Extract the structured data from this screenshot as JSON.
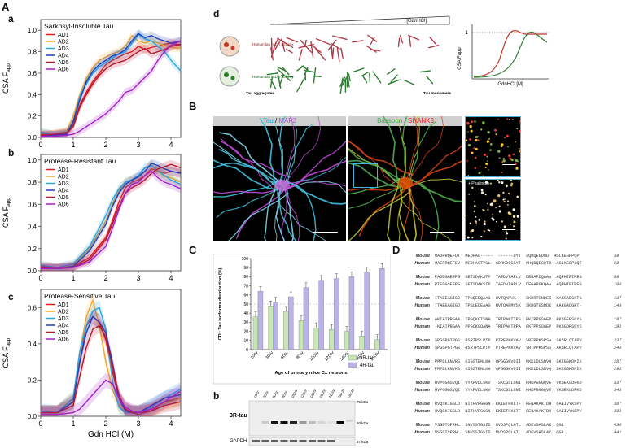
{
  "figure": {
    "panel_A": "A",
    "panel_B": "B",
    "panel_C": "C",
    "panel_D": "D",
    "sub_a": "a",
    "sub_b": "b",
    "sub_c": "c",
    "sub_d": "d",
    "sub_Ca": "a",
    "sub_Cb": "b"
  },
  "chart_data": [
    {
      "type": "line",
      "title": "Sarkosyl-Insoluble Tau",
      "xlabel": "",
      "ylabel": "CSA F_app",
      "xlim": [
        0,
        4.3
      ],
      "ylim": [
        0,
        1.1
      ],
      "xticks": [
        "0",
        "1",
        "2",
        "3",
        "4"
      ],
      "yticks": [
        "0.0",
        "0.2",
        "0.4",
        "0.6",
        "0.8",
        "1.0"
      ],
      "series": [
        {
          "name": "AD1",
          "color": "#e41a1c",
          "x": [
            0,
            0.4,
            0.8,
            1.0,
            1.2,
            1.4,
            1.6,
            1.8,
            2.0,
            2.2,
            2.4,
            2.6,
            2.8,
            3.0,
            3.2,
            3.4,
            3.6,
            3.8,
            4.0,
            4.3
          ],
          "values": [
            0.03,
            0.02,
            0.05,
            0.12,
            0.3,
            0.42,
            0.52,
            0.6,
            0.68,
            0.72,
            0.75,
            0.78,
            0.8,
            0.85,
            0.82,
            0.84,
            0.85,
            0.87,
            0.88,
            0.86
          ]
        },
        {
          "name": "AD2",
          "color": "#f5a623",
          "x": [
            0,
            0.4,
            0.8,
            1.0,
            1.2,
            1.4,
            1.6,
            1.8,
            2.0,
            2.2,
            2.4,
            2.6,
            2.8,
            3.0,
            3.2,
            3.4,
            3.6,
            3.8,
            4.0,
            4.3
          ],
          "values": [
            0.04,
            0.03,
            0.06,
            0.2,
            0.4,
            0.55,
            0.65,
            0.72,
            0.75,
            0.78,
            0.8,
            0.85,
            0.95,
            0.9,
            0.88,
            0.9,
            0.88,
            0.86,
            0.84,
            0.83
          ]
        },
        {
          "name": "AD3",
          "color": "#29a8e0",
          "x": [
            0,
            0.4,
            0.8,
            1.0,
            1.2,
            1.4,
            1.6,
            1.8,
            2.0,
            2.2,
            2.4,
            2.6,
            2.8,
            3.0,
            3.2,
            3.4,
            3.6,
            3.8,
            4.0,
            4.3
          ],
          "values": [
            0.05,
            0.02,
            0.04,
            0.15,
            0.38,
            0.5,
            0.6,
            0.66,
            0.7,
            0.74,
            0.78,
            0.8,
            0.88,
            0.96,
            0.92,
            0.9,
            0.85,
            0.8,
            0.72,
            0.62
          ]
        },
        {
          "name": "AD4",
          "color": "#1f3fc4",
          "x": [
            0,
            0.4,
            0.8,
            1.0,
            1.2,
            1.4,
            1.6,
            1.8,
            2.0,
            2.2,
            2.4,
            2.6,
            2.8,
            3.0,
            3.2,
            3.4,
            3.6,
            3.8,
            4.0,
            4.3
          ],
          "values": [
            0.02,
            0.02,
            0.03,
            0.15,
            0.35,
            0.52,
            0.62,
            0.68,
            0.72,
            0.76,
            0.78,
            0.82,
            0.9,
            0.97,
            0.93,
            0.95,
            0.92,
            0.9,
            0.88,
            0.9
          ]
        },
        {
          "name": "AD5",
          "color": "#b2182b",
          "x": [
            0,
            0.4,
            0.8,
            1.0,
            1.2,
            1.4,
            1.6,
            1.8,
            2.0,
            2.2,
            2.4,
            2.6,
            2.8,
            3.0,
            3.2,
            3.4,
            3.6,
            3.8,
            4.0,
            4.3
          ],
          "values": [
            0.02,
            0.03,
            0.04,
            0.1,
            0.28,
            0.4,
            0.5,
            0.58,
            0.64,
            0.68,
            0.7,
            0.72,
            0.76,
            0.8,
            0.83,
            0.78,
            0.8,
            0.82,
            0.85,
            0.87
          ]
        },
        {
          "name": "AD6",
          "color": "#a020c8",
          "x": [
            0,
            0.4,
            0.8,
            1.0,
            1.2,
            1.4,
            1.6,
            1.8,
            2.0,
            2.2,
            2.4,
            2.6,
            2.8,
            3.0,
            3.2,
            3.4,
            3.6,
            3.8,
            4.0,
            4.3
          ],
          "values": [
            0.01,
            0.01,
            0.02,
            0.03,
            0.06,
            0.1,
            0.14,
            0.18,
            0.22,
            0.28,
            0.34,
            0.42,
            0.44,
            0.5,
            0.56,
            0.62,
            0.72,
            0.8,
            0.86,
            0.9
          ]
        }
      ]
    },
    {
      "type": "line",
      "title": "Protease-Resistant Tau",
      "xlabel": "",
      "ylabel": "CSA F_app",
      "xlim": [
        0,
        4.3
      ],
      "ylim": [
        0,
        1.05
      ],
      "xticks": [
        "0",
        "1",
        "2",
        "3",
        "4"
      ],
      "yticks": [
        "0.0",
        "0.2",
        "0.4",
        "0.6",
        "0.8",
        "1.0"
      ],
      "series": [
        {
          "name": "AD1",
          "color": "#e41a1c",
          "x": [
            0,
            0.5,
            1.0,
            1.5,
            2.0,
            2.2,
            2.4,
            2.6,
            2.8,
            3.0,
            3.2,
            3.4,
            3.6,
            3.8,
            4.0,
            4.3
          ],
          "values": [
            0.04,
            0.03,
            0.04,
            0.12,
            0.3,
            0.45,
            0.62,
            0.75,
            0.8,
            0.82,
            0.86,
            0.92,
            0.9,
            0.88,
            0.9,
            0.88
          ]
        },
        {
          "name": "AD2",
          "color": "#f5a623",
          "x": [
            0,
            0.5,
            1.0,
            1.5,
            2.0,
            2.2,
            2.4,
            2.6,
            2.8,
            3.0,
            3.2,
            3.4,
            3.6,
            3.8,
            4.0,
            4.3
          ],
          "values": [
            0.03,
            0.02,
            0.05,
            0.2,
            0.45,
            0.6,
            0.72,
            0.8,
            0.82,
            0.84,
            0.9,
            0.96,
            0.9,
            0.85,
            0.84,
            0.8
          ]
        },
        {
          "name": "AD3",
          "color": "#29a8e0",
          "x": [
            0,
            0.5,
            1.0,
            1.5,
            2.0,
            2.2,
            2.4,
            2.6,
            2.8,
            3.0,
            3.2,
            3.4,
            3.6,
            3.8,
            4.0,
            4.3
          ],
          "values": [
            0.05,
            0.03,
            0.06,
            0.22,
            0.5,
            0.64,
            0.74,
            0.8,
            0.82,
            0.86,
            0.93,
            0.95,
            0.9,
            0.86,
            0.82,
            0.78
          ]
        },
        {
          "name": "AD4",
          "color": "#1f3fc4",
          "x": [
            0,
            0.5,
            1.0,
            1.5,
            2.0,
            2.2,
            2.4,
            2.6,
            2.8,
            3.0,
            3.2,
            3.4,
            3.6,
            3.8,
            4.0,
            4.3
          ],
          "values": [
            0.02,
            0.02,
            0.04,
            0.18,
            0.42,
            0.58,
            0.7,
            0.78,
            0.82,
            0.85,
            0.9,
            0.97,
            0.95,
            0.92,
            0.9,
            0.88
          ]
        },
        {
          "name": "AD5",
          "color": "#b2182b",
          "x": [
            0,
            0.5,
            1.0,
            1.5,
            2.0,
            2.2,
            2.4,
            2.6,
            2.8,
            3.0,
            3.2,
            3.4,
            3.6,
            3.8,
            4.0,
            4.3
          ],
          "values": [
            0.03,
            0.02,
            0.03,
            0.1,
            0.28,
            0.42,
            0.58,
            0.7,
            0.75,
            0.78,
            0.82,
            0.88,
            0.92,
            0.94,
            0.96,
            0.93
          ]
        },
        {
          "name": "AD6",
          "color": "#a020c8",
          "x": [
            0,
            0.5,
            1.0,
            1.5,
            2.0,
            2.2,
            2.4,
            2.6,
            2.8,
            3.0,
            3.2,
            3.4,
            3.6,
            3.8,
            4.0,
            4.3
          ],
          "values": [
            0.02,
            0.02,
            0.03,
            0.08,
            0.22,
            0.38,
            0.55,
            0.7,
            0.78,
            0.8,
            0.86,
            0.9,
            0.84,
            0.8,
            0.78,
            0.74
          ]
        }
      ]
    },
    {
      "type": "line",
      "title": "Protease-Sensitive Tau",
      "xlabel": "Gdn HCl (M)",
      "ylabel": "CSA F_app",
      "xlim": [
        0,
        4.3
      ],
      "ylim": [
        0,
        0.7
      ],
      "xticks": [
        "0",
        "1",
        "2",
        "3",
        "4"
      ],
      "yticks": [
        "0.0",
        "0.2",
        "0.4",
        "0.6"
      ],
      "series": [
        {
          "name": "AD1",
          "color": "#e41a1c",
          "x": [
            0,
            0.5,
            1.0,
            1.2,
            1.4,
            1.6,
            1.8,
            2.0,
            2.2,
            2.4,
            2.6,
            2.8,
            3.0,
            3.4,
            3.8,
            4.3
          ],
          "values": [
            0.02,
            0.02,
            0.08,
            0.3,
            0.5,
            0.55,
            0.52,
            0.42,
            0.25,
            0.1,
            0.04,
            0.02,
            0.01,
            0.03,
            0.08,
            0.1
          ]
        },
        {
          "name": "AD2",
          "color": "#f5a623",
          "x": [
            0,
            0.5,
            1.0,
            1.2,
            1.4,
            1.6,
            1.8,
            2.0,
            2.2,
            2.4,
            2.6,
            2.8,
            3.0,
            3.4,
            3.8,
            4.3
          ],
          "values": [
            0.02,
            0.02,
            0.1,
            0.35,
            0.55,
            0.64,
            0.5,
            0.3,
            0.15,
            0.06,
            0.02,
            0.02,
            0.02,
            0.04,
            0.07,
            0.1
          ]
        },
        {
          "name": "AD3",
          "color": "#29a8e0",
          "x": [
            0,
            0.5,
            1.0,
            1.2,
            1.4,
            1.6,
            1.8,
            2.0,
            2.2,
            2.4,
            2.6,
            2.8,
            3.0,
            3.4,
            3.8,
            4.3
          ],
          "values": [
            0.03,
            0.02,
            0.1,
            0.36,
            0.5,
            0.58,
            0.6,
            0.48,
            0.2,
            0.05,
            0.02,
            0.02,
            0.02,
            0.05,
            0.1,
            0.15
          ]
        },
        {
          "name": "AD4",
          "color": "#1f3fc4",
          "x": [
            0,
            0.5,
            1.0,
            1.2,
            1.4,
            1.6,
            1.8,
            2.0,
            2.2,
            2.4,
            2.6,
            2.8,
            3.0,
            3.4,
            3.8,
            4.3
          ],
          "values": [
            0.02,
            0.02,
            0.08,
            0.3,
            0.46,
            0.55,
            0.52,
            0.46,
            0.3,
            0.1,
            0.03,
            0.02,
            0.02,
            0.06,
            0.1,
            0.12
          ]
        },
        {
          "name": "AD5",
          "color": "#b2182b",
          "x": [
            0,
            0.5,
            1.0,
            1.2,
            1.4,
            1.6,
            1.8,
            2.0,
            2.2,
            2.4,
            2.6,
            2.8,
            3.0,
            3.4,
            3.8,
            4.3
          ],
          "values": [
            0.02,
            0.02,
            0.06,
            0.22,
            0.38,
            0.48,
            0.5,
            0.44,
            0.28,
            0.12,
            0.04,
            0.02,
            0.02,
            0.03,
            0.06,
            0.08
          ]
        },
        {
          "name": "AD6",
          "color": "#a020c8",
          "x": [
            0,
            0.5,
            1.0,
            1.2,
            1.4,
            1.6,
            1.8,
            2.0,
            2.2,
            2.4,
            2.6,
            2.8,
            3.0,
            3.4,
            3.8,
            4.3
          ],
          "values": [
            0.01,
            0.01,
            0.02,
            0.04,
            0.08,
            0.12,
            0.16,
            0.2,
            0.18,
            0.1,
            0.05,
            0.03,
            0.02,
            0.04,
            0.08,
            0.14
          ]
        }
      ]
    },
    {
      "type": "bar",
      "title": "",
      "xlabel": "Age of primary mice Cx neurons",
      "ylabel": "CDI: Tau isoforms distribution (%)",
      "ylim": [
        0,
        100
      ],
      "yticks": [
        "0",
        "10",
        "20",
        "30",
        "40",
        "50",
        "60",
        "70",
        "80",
        "90",
        "100"
      ],
      "categories": [
        "1DIV",
        "3DIV",
        "6DIV",
        "8DIV",
        "10DIV",
        "12DIV",
        "14DIV",
        "16DIV",
        "21DIV"
      ],
      "series": [
        {
          "name": "3R-tau",
          "color": "#c8e6b4",
          "values": [
            36,
            48,
            42,
            32,
            24,
            22,
            20,
            15,
            11
          ]
        },
        {
          "name": "4R-tau",
          "color": "#b9b3ea",
          "values": [
            64,
            52,
            58,
            68,
            76,
            78,
            80,
            85,
            89
          ]
        }
      ]
    }
  ],
  "panel_d": {
    "gradient_label": "[GdnHCl]",
    "strain_x": "Human tau (ADₓ)\nStrain x",
    "strain_y": "Human tau (ADᵧ)\nStrain y",
    "aggregates": "Tau aggregates",
    "monomers": "Tau monomers",
    "ylabel": "CSA Fapp",
    "xlabel": "GdnHCl [M]",
    "y_one": "1"
  },
  "panel_B": {
    "img1_label_a": "Tau",
    "img1_sep": " / ",
    "img1_label_b": "MAP2",
    "img2_label_a": "Bassoon",
    "img2_sep": " / ",
    "img2_label_b": "SHANK3",
    "img3_label": "+ Phalloidin"
  },
  "panel_Cb": {
    "lanes": [
      "1DIV",
      "3DIV",
      "6DIV",
      "8DIV",
      "10DIV",
      "12DIV",
      "14DIV",
      "16DIV",
      "21DIV",
      "Tau 3R",
      "Tau 4R"
    ],
    "band_3r": "3R-tau",
    "band_gapdh": "GAPDH",
    "kda_75": "75 kDa",
    "kda_50": "50 kDa",
    "kda_37": "37 kDa"
  },
  "panel_D_seq": {
    "mouse": "Mouse",
    "human": "Human",
    "rows": [
      {
        "m": "MADPRQEFDT  MEDHAG-----  ------DYT  LQDQEGDMD  HGLKESPPQP",
        "mn": "39",
        "h": "MAEPRQEFEV  MEDHAGTYGL  GDRKDQGGYT  MHQDQEGDTD  AGLKESPLQT",
        "hn": "50"
      },
      {
        "m": "PADDGAEEPG  SETSDAKSTP  TAEDVTAPLV  DERAPDQAAA  AQPHTEIPEG",
        "mn": "89",
        "h": "PTEDGSEEPG  SETSDAKSTP  TAEDVTAPLV  DEGAPGKQAA  AQPHTEIPEG",
        "hn": "100"
      },
      {
        "m": "ITAEEAGIGD  TPNQEDQAAG  HVTQARVA--  SKDRTGNDEK  KAKGADGKTG",
        "mn": "137",
        "h": "TTAEEAGIGD  TPSLEDEAAG  HVTQARMVSK  SKDGTGSDDK  KAKGADGKT-",
        "hn": "149"
      },
      {
        "m": "AKIATPRGAA  TPGQKGTSNA  TRIPAKTTPS  PKTPPGSGEP  PKSGERSGYS",
        "mn": "187",
        "h": "-KIATPRGAA  PPGQKGQANA  TRIPAKTPPA  PKTPPSSGEP  PKSGDRSGYS",
        "hn": "198"
      },
      {
        "m": "SPGSPGTPGS  RSRTPSLPTP  PTREPKKVAV  VRTPPKSPSA  SKSRLQTAPV",
        "mn": "237",
        "h": "SPGSPGTPGS  RSRTPSLPTP  PTREPKKVAV  VRTPPKSPSS  AKSRLQTAPV",
        "hn": "248"
      },
      {
        "m": "PMPDLKNVRS  KIGSTENLKH  QPGGGKVQII  NKKLDLSNVQ  SKCGSKDNIK",
        "mn": "287",
        "h": "PMPDLKNVKS  KIGSTENLKH  QPGGGKVQII  NKKLDLSNVQ  SKCGSKDNIK",
        "hn": "298"
      },
      {
        "m": "HVPGGGSVQI  VYKPVDLSKV  TSKCGSLGNI  HHKPGGGQVE  VKSEKLDFKD",
        "mn": "337",
        "h": "HVPGGGSVQI  VYKPVDLSKV  TSKCGSLGNI  HHKPGGGQVE  VKSEKLDFKD",
        "hn": "348"
      },
      {
        "m": "RVQSKIGSLD  NITHVPGGGN  KKIETHKLTF  RENAKAKTDH  GAEIVYKSPV",
        "mn": "387",
        "h": "RVQSKIGSLD  NITHVPGGGN  KKIETHKLTF  RENAKAKTDH  GAEIVYKSPV",
        "hn": "398"
      },
      {
        "m": "VSGDTSPRHL  SNVSSTGSID  MVDSPQLATL  ADEVSASLAK  QGL",
        "mn": "430",
        "h": "VSGDTSPRHL  SNVSSTGSID  MVDSPQLATL  ADEVSASLAK  QGL",
        "hn": "441"
      }
    ]
  }
}
